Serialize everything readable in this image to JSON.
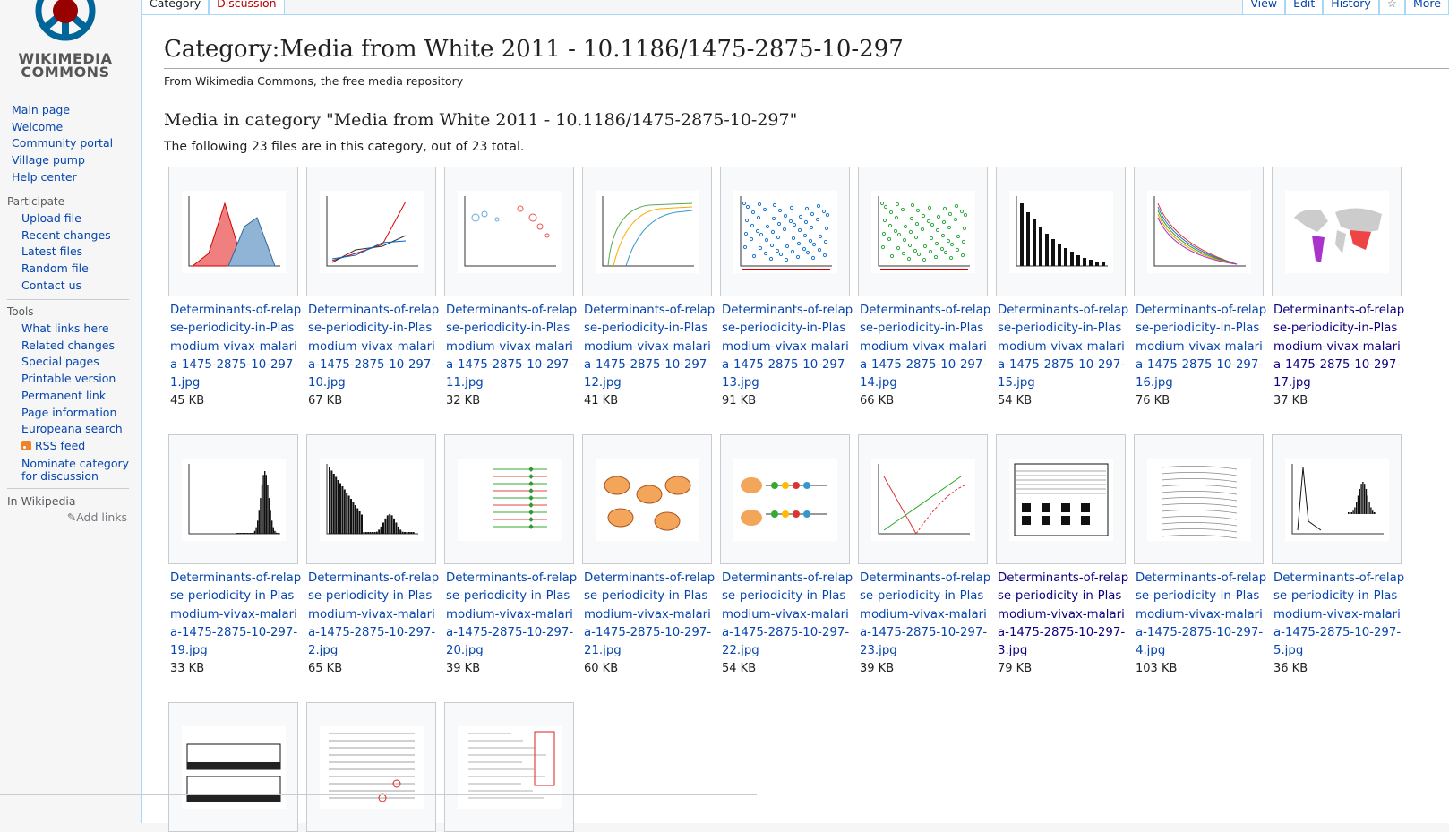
{
  "logo": {
    "line1": "WIKIMEDIA",
    "line2": "COMMONS",
    "colors": {
      "red": "#990000",
      "blue": "#069"
    }
  },
  "tabs_left": [
    {
      "label": "Category",
      "state": "selected"
    },
    {
      "label": "Discussion",
      "state": "new"
    }
  ],
  "tabs_right": [
    {
      "label": "View"
    },
    {
      "label": "Edit"
    },
    {
      "label": "History"
    },
    {
      "label": "☆"
    },
    {
      "label": "More"
    }
  ],
  "sidebar": {
    "navigation": [
      "Main page",
      "Welcome",
      "Community portal",
      "Village pump",
      "Help center"
    ],
    "participate": {
      "heading": "Participate",
      "items": [
        "Upload file",
        "Recent changes",
        "Latest files",
        "Random file",
        "Contact us"
      ]
    },
    "tools": {
      "heading": "Tools",
      "items": [
        "What links here",
        "Related changes",
        "Special pages",
        "Printable version",
        "Permanent link",
        "Page information",
        "Europeana search",
        "RSS feed",
        "Nominate category for discussion"
      ]
    },
    "in_wikipedia": {
      "heading": "In Wikipedia",
      "add_links": "Add links"
    }
  },
  "page": {
    "title": "Category:Media from White 2011 - 10.1186/1475-2875-10-297",
    "tagline": "From Wikimedia Commons, the free media repository",
    "section_heading": "Media in category \"Media from White 2011 - 10.1186/1475-2875-10-297\"",
    "count_text": "The following 23 files are in this category, out of 23 total."
  },
  "files": [
    {
      "name": "Determinants-of-relapse-periodicity-in-Plasmodium-vivax-malaria-1475-2875-10-297-1.jpg",
      "size": "45 KB",
      "thumb": "area-chart"
    },
    {
      "name": "Determinants-of-relapse-periodicity-in-Plasmodium-vivax-malaria-1475-2875-10-297-10.jpg",
      "size": "67 KB",
      "thumb": "line-chart"
    },
    {
      "name": "Determinants-of-relapse-periodicity-in-Plasmodium-vivax-malaria-1475-2875-10-297-11.jpg",
      "size": "32 KB",
      "thumb": "bubble-chart"
    },
    {
      "name": "Determinants-of-relapse-periodicity-in-Plasmodium-vivax-malaria-1475-2875-10-297-12.jpg",
      "size": "41 KB",
      "thumb": "curve-chart"
    },
    {
      "name": "Determinants-of-relapse-periodicity-in-Plasmodium-vivax-malaria-1475-2875-10-297-13.jpg",
      "size": "91 KB",
      "thumb": "scatter-blue"
    },
    {
      "name": "Determinants-of-relapse-periodicity-in-Plasmodium-vivax-malaria-1475-2875-10-297-14.jpg",
      "size": "66 KB",
      "thumb": "scatter-green"
    },
    {
      "name": "Determinants-of-relapse-periodicity-in-Plasmodium-vivax-malaria-1475-2875-10-297-15.jpg",
      "size": "54 KB",
      "thumb": "bar-chart"
    },
    {
      "name": "Determinants-of-relapse-periodicity-in-Plasmodium-vivax-malaria-1475-2875-10-297-16.jpg",
      "size": "76 KB",
      "thumb": "multi-line"
    },
    {
      "name": "Determinants-of-relapse-periodicity-in-Plasmodium-vivax-malaria-1475-2875-10-297-17.jpg",
      "size": "37 KB",
      "thumb": "world-map"
    },
    {
      "name": "Determinants-of-relapse-periodicity-in-Plasmodium-vivax-malaria-1475-2875-10-297-19.jpg",
      "size": "33 KB",
      "thumb": "histogram"
    },
    {
      "name": "Determinants-of-relapse-periodicity-in-Plasmodium-vivax-malaria-1475-2875-10-297-2.jpg",
      "size": "65 KB",
      "thumb": "histogram-2"
    },
    {
      "name": "Determinants-of-relapse-periodicity-in-Plasmodium-vivax-malaria-1475-2875-10-297-20.jpg",
      "size": "39 KB",
      "thumb": "forest-plot"
    },
    {
      "name": "Determinants-of-relapse-periodicity-in-Plasmodium-vivax-malaria-1475-2875-10-297-21.jpg",
      "size": "60 KB",
      "thumb": "liver-diagram"
    },
    {
      "name": "Determinants-of-relapse-periodicity-in-Plasmodium-vivax-malaria-1475-2875-10-297-22.jpg",
      "size": "54 KB",
      "thumb": "phenotype-diagram"
    },
    {
      "name": "Determinants-of-relapse-periodicity-in-Plasmodium-vivax-malaria-1475-2875-10-297-23.jpg",
      "size": "39 KB",
      "thumb": "parasite-chart"
    },
    {
      "name": "Determinants-of-relapse-periodicity-in-Plasmodium-vivax-malaria-1475-2875-10-297-3.jpg",
      "size": "79 KB",
      "thumb": "handwritten-table"
    },
    {
      "name": "Determinants-of-relapse-periodicity-in-Plasmodium-vivax-malaria-1475-2875-10-297-4.jpg",
      "size": "103 KB",
      "thumb": "scanned-chart"
    },
    {
      "name": "Determinants-of-relapse-periodicity-in-Plasmodium-vivax-malaria-1475-2875-10-297-5.jpg",
      "size": "36 KB",
      "thumb": "spike-chart"
    },
    {
      "name": "",
      "size": "",
      "thumb": "zone-diagram"
    },
    {
      "name": "",
      "size": "",
      "thumb": "scanned-table"
    },
    {
      "name": "",
      "size": "",
      "thumb": "scanned-list"
    }
  ]
}
